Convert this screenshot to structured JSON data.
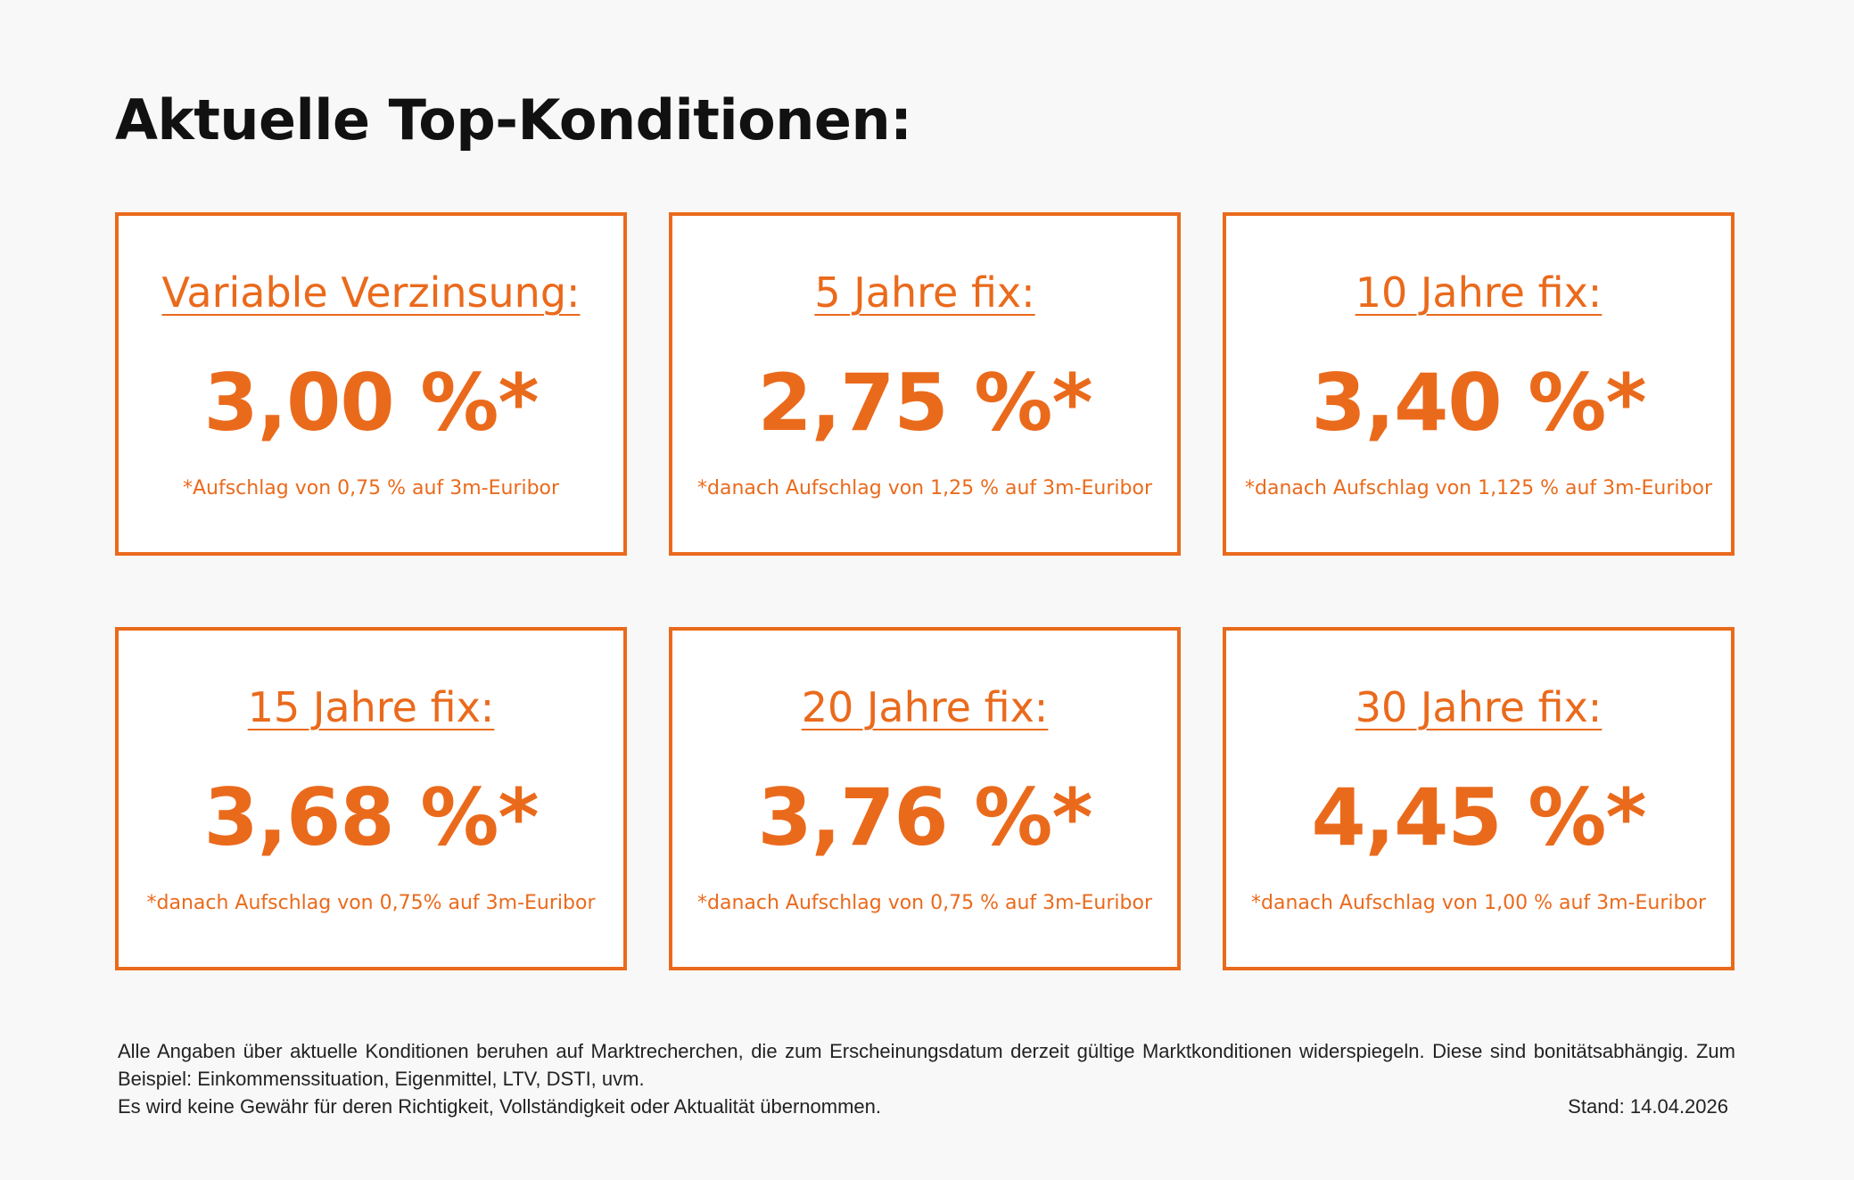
{
  "header": {
    "title": "Aktuelle Top-Konditionen:"
  },
  "colors": {
    "accent": "#ea6a1c",
    "background": "#f8f8f8",
    "card_background": "#ffffff",
    "text": "#111111"
  },
  "cards": [
    {
      "title": "Variable Verzinsung:",
      "rate": "3,00 %*",
      "note": "*Aufschlag von 0,75 % auf 3m-Euribor"
    },
    {
      "title": "5 Jahre fix:",
      "rate": "2,75 %*",
      "note": "*danach Aufschlag von 1,25 % auf 3m-Euribor"
    },
    {
      "title": "10 Jahre fix:",
      "rate": "3,40 %*",
      "note": "*danach Aufschlag von 1,125 % auf 3m-Euribor"
    },
    {
      "title": "15 Jahre fix:",
      "rate": "3,68 %*",
      "note": "*danach Aufschlag von 0,75% auf 3m-Euribor"
    },
    {
      "title": "20 Jahre fix:",
      "rate": "3,76 %*",
      "note": "*danach Aufschlag von 0,75 % auf 3m-Euribor"
    },
    {
      "title": "30 Jahre fix:",
      "rate": "4,45 %*",
      "note": "*danach Aufschlag von 1,00 % auf 3m-Euribor"
    }
  ],
  "footer": {
    "disclaimer_1": "Alle Angaben über aktuelle Konditionen beruhen auf Marktrecherchen, die zum Erscheinungsdatum derzeit gültige Marktkonditionen widerspiegeln. Diese sind bonitätsabhängig. Zum Beispiel: Einkommenssituation, Eigenmittel, LTV, DSTI, uvm.",
    "disclaimer_2": "Es wird keine Gewähr für deren Richtigkeit, Vollständigkeit oder Aktualität übernommen.",
    "stand": "Stand: 14.04.2026"
  }
}
